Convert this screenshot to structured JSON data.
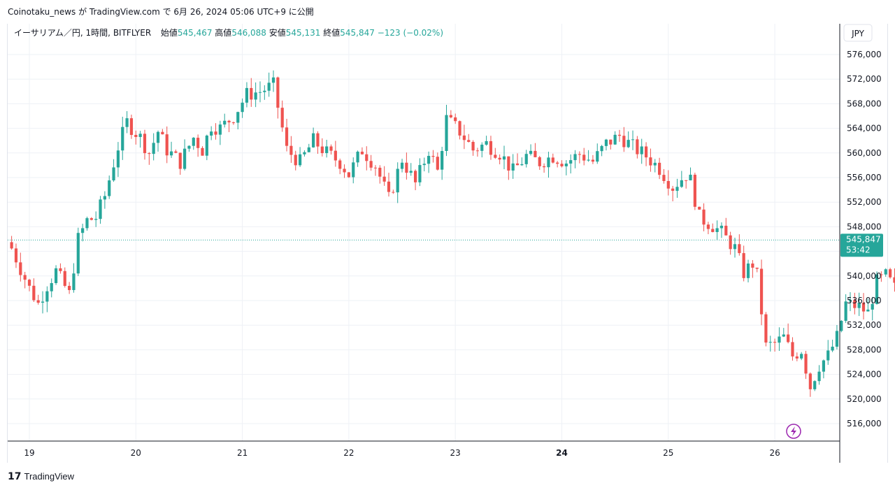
{
  "header": {
    "published_text": "Coinotaku_news が TradingView.com で 6月 26, 2024 05:06 UTC+9 に公開"
  },
  "legend": {
    "symbol": "イーサリアム／円, 1時間, BITFLYER",
    "open_label": "始値",
    "open_value": "545,467",
    "high_label": "高値",
    "high_value": "546,088",
    "low_label": "安値",
    "low_value": "545,131",
    "close_label": "終値",
    "close_value": "545,847",
    "change": "−123 (−0.02%)"
  },
  "price_axis": {
    "currency": "JPY",
    "last_price": "545,847",
    "countdown": "53:42"
  },
  "footer": {
    "logo_mark": "17",
    "brand": "TradingView"
  },
  "colors": {
    "up": "#26a69a",
    "down": "#ef5350",
    "grid": "#eef1f6",
    "axis_border": "#131722",
    "last_price_line": "#26a69a",
    "lightning": "#9c27b0"
  },
  "chart_data": {
    "type": "candlestick",
    "symbol": "イーサリアム／円",
    "interval": "1時間",
    "exchange": "BITFLYER",
    "x_axis_labels": [
      "19",
      "20",
      "21",
      "22",
      "23",
      "24",
      "25",
      "26"
    ],
    "x_axis_bold": [
      "24"
    ],
    "y_ticks": [
      516000,
      520000,
      524000,
      528000,
      532000,
      536000,
      540000,
      544000,
      548000,
      552000,
      556000,
      560000,
      564000,
      568000,
      572000,
      576000
    ],
    "y_tick_labels": [
      "516,000",
      "520,000",
      "524,000",
      "528,000",
      "532,000",
      "536,000",
      "540,000",
      "544,000",
      "548,000",
      "552,000",
      "556,000",
      "560,000",
      "564,000",
      "568,000",
      "572,000",
      "576,000"
    ],
    "ylim": [
      512000,
      578500
    ],
    "last_price": 545847,
    "grid": true,
    "anchor_points": [
      [
        0,
        544500
      ],
      [
        4,
        538000
      ],
      [
        6,
        535500
      ],
      [
        8,
        538500
      ],
      [
        10,
        540800
      ],
      [
        13,
        537000
      ],
      [
        15,
        546000
      ],
      [
        17,
        549000
      ],
      [
        19,
        549500
      ],
      [
        21,
        553000
      ],
      [
        24,
        561000
      ],
      [
        26,
        565000
      ],
      [
        29,
        562500
      ],
      [
        31,
        560000
      ],
      [
        33,
        563500
      ],
      [
        35,
        560500
      ],
      [
        38,
        558500
      ],
      [
        41,
        562500
      ],
      [
        43,
        560500
      ],
      [
        45,
        564500
      ],
      [
        47,
        564000
      ],
      [
        50,
        566000
      ],
      [
        53,
        569500
      ],
      [
        56,
        570000
      ],
      [
        59,
        571000
      ],
      [
        60,
        567500
      ],
      [
        62,
        560500
      ],
      [
        65,
        558500
      ],
      [
        68,
        562000
      ],
      [
        71,
        560000
      ],
      [
        74,
        558500
      ],
      [
        76,
        556500
      ],
      [
        79,
        560500
      ],
      [
        82,
        558000
      ],
      [
        85,
        552500
      ],
      [
        88,
        559000
      ],
      [
        91,
        555000
      ],
      [
        94,
        560500
      ],
      [
        96,
        557000
      ],
      [
        98,
        565500
      ],
      [
        101,
        563500
      ],
      [
        104,
        560500
      ],
      [
        107,
        561500
      ],
      [
        110,
        560000
      ],
      [
        113,
        557000
      ],
      [
        116,
        559500
      ],
      [
        119,
        558500
      ],
      [
        122,
        559500
      ],
      [
        125,
        558500
      ],
      [
        128,
        559800
      ],
      [
        131,
        558600
      ],
      [
        134,
        561500
      ],
      [
        137,
        562800
      ],
      [
        140,
        561000
      ],
      [
        143,
        559500
      ],
      [
        146,
        557500
      ],
      [
        149,
        554500
      ],
      [
        152,
        556500
      ],
      [
        153,
        555500
      ],
      [
        155,
        549500
      ],
      [
        158,
        548200
      ],
      [
        160,
        547000
      ],
      [
        163,
        544500
      ],
      [
        165,
        540500
      ],
      [
        167,
        542000
      ],
      [
        168,
        540000
      ],
      [
        170,
        528500
      ],
      [
        172,
        529000
      ],
      [
        174,
        530000
      ],
      [
        176,
        527000
      ],
      [
        178,
        528000
      ],
      [
        180,
        522000
      ],
      [
        182,
        525500
      ],
      [
        184,
        527000
      ],
      [
        186,
        530000
      ],
      [
        188,
        535500
      ],
      [
        191,
        535000
      ],
      [
        193,
        534000
      ],
      [
        195,
        539000
      ],
      [
        197,
        540000
      ],
      [
        199,
        538000
      ],
      [
        201,
        536000
      ],
      [
        203,
        539500
      ],
      [
        206,
        538000
      ],
      [
        208,
        539800
      ],
      [
        210,
        544000
      ],
      [
        212,
        542000
      ],
      [
        214,
        544500
      ],
      [
        216,
        545847
      ]
    ],
    "time_axis": {
      "first_candle_hour_offset": -4,
      "candles_per_day": 24
    }
  }
}
